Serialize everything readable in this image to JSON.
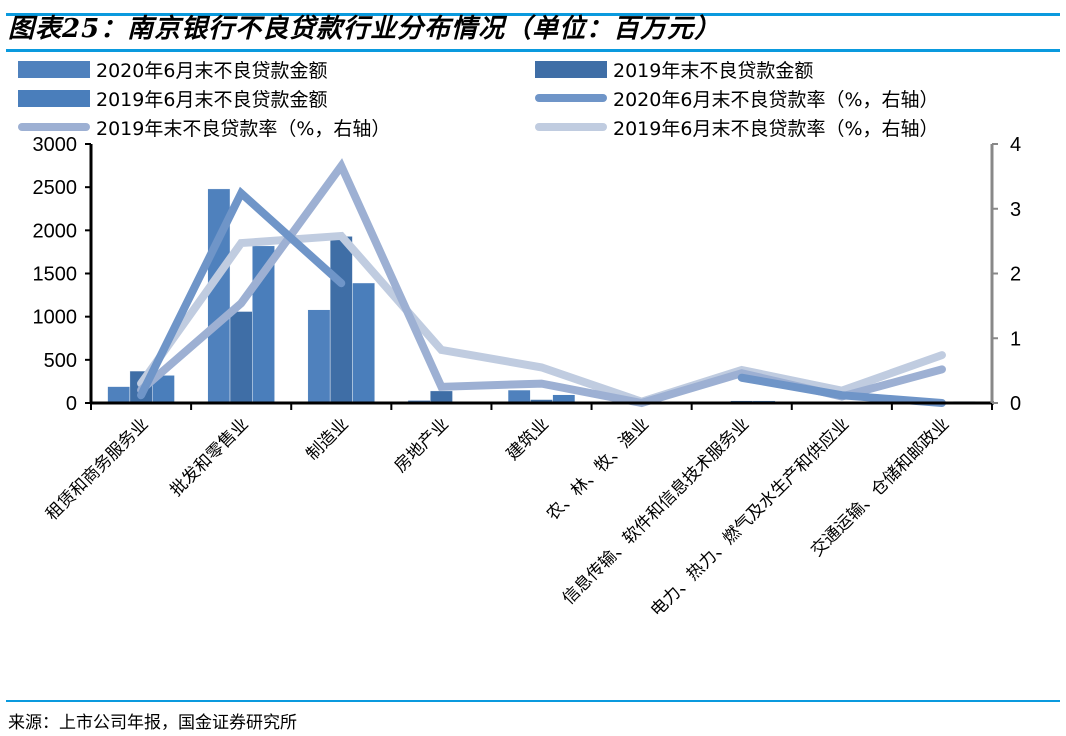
{
  "header": {
    "title": "图表25：南京银行不良贷款行业分布情况（单位：百万元）"
  },
  "footer": {
    "source": "来源：上市公司年报，国金证券研究所"
  },
  "colors": {
    "rule": "#0a9ade",
    "bar_2020h1": "#4f81bd",
    "bar_2019ye": "#3f6ea6",
    "bar_2019h1": "#4a7ebb",
    "line_2020h1": "#6f95c8",
    "line_2019ye": "#9db0d3",
    "line_2019h1": "#c0cce0",
    "right_axis": "#888888"
  },
  "legend": [
    {
      "label": "2020年6月末不良贷款金额",
      "type": "bar",
      "color": "#4f81bd"
    },
    {
      "label": "2019年末不良贷款金额",
      "type": "bar",
      "color": "#3f6ea6"
    },
    {
      "label": "2019年6月末不良贷款金额",
      "type": "bar",
      "color": "#4a7ebb"
    },
    {
      "label": "2020年6月末不良贷款率（%，右轴）",
      "type": "line",
      "color": "#6f95c8"
    },
    {
      "label": "2019年末不良贷款率（%，右轴）",
      "type": "line",
      "color": "#9db0d3"
    },
    {
      "label": "2019年6月末不良贷款率（%，右轴）",
      "type": "line",
      "color": "#c0cce0"
    }
  ],
  "chart_data": {
    "type": "bar",
    "title": "图表25：南京银行不良贷款行业分布情况（单位：百万元）",
    "xlabel": "",
    "ylabel": "",
    "y2label": "",
    "ylim": [
      0,
      3000
    ],
    "y2lim": [
      0,
      4
    ],
    "yticks": [
      0,
      500,
      1000,
      1500,
      2000,
      2500,
      3000
    ],
    "y2ticks": [
      0,
      1,
      2,
      3,
      4
    ],
    "grid": false,
    "legend_position": "top",
    "categories": [
      "租赁和商务服务业",
      "批发和零售业",
      "制造业",
      "房地产业",
      "建筑业",
      "农、林、牧、渔业",
      "信息传输、软件和信息技术服务业",
      "电力、热力、燃气及水生产和供应业",
      "交通运输、仓储和邮政业"
    ],
    "series": [
      {
        "name": "2020年6月末不良贷款金额",
        "type": "bar",
        "axis": "left",
        "values": [
          190,
          2480,
          1080,
          30,
          150,
          5,
          10,
          0,
          0
        ]
      },
      {
        "name": "2019年末不良贷款金额",
        "type": "bar",
        "axis": "left",
        "values": [
          370,
          1060,
          1930,
          140,
          40,
          5,
          25,
          0,
          0
        ]
      },
      {
        "name": "2019年6月末不良贷款金额",
        "type": "bar",
        "axis": "left",
        "values": [
          320,
          1820,
          1390,
          0,
          95,
          5,
          25,
          0,
          20
        ]
      },
      {
        "name": "2020年6月末不良贷款率（%，右轴）",
        "type": "line",
        "axis": "right",
        "values": [
          0.12,
          3.24,
          1.85,
          null,
          null,
          null,
          0.39,
          0.12,
          0.0
        ]
      },
      {
        "name": "2019年末不良贷款率（%，右轴）",
        "type": "line",
        "axis": "right",
        "values": [
          0.2,
          1.54,
          3.66,
          0.25,
          0.3,
          0.0,
          0.46,
          0.1,
          0.52
        ]
      },
      {
        "name": "2019年6月末不良贷款率（%，右轴）",
        "type": "line",
        "axis": "right",
        "values": [
          0.3,
          2.47,
          2.58,
          0.82,
          0.55,
          0.02,
          0.51,
          0.19,
          0.74
        ]
      }
    ]
  }
}
